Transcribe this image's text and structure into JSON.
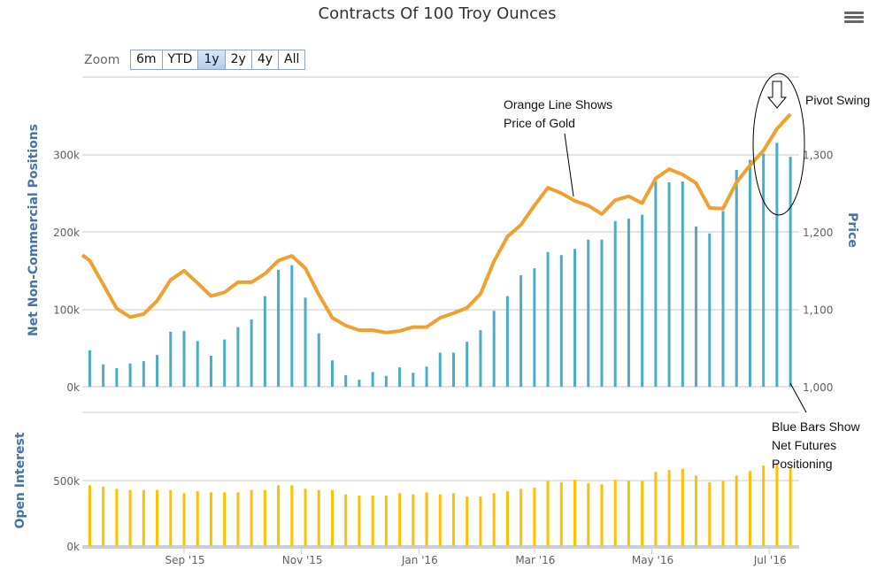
{
  "title": "Contracts Of 100 Troy Ounces",
  "menu_icon": "hamburger-menu-icon",
  "range_selector": {
    "label": "Zoom",
    "buttons": [
      "6m",
      "YTD",
      "1y",
      "2y",
      "4y",
      "All"
    ],
    "selected": "1y"
  },
  "annotations": {
    "orange": [
      "Orange Line Shows",
      "Price of Gold"
    ],
    "pivot": "Pivot Swing",
    "blue": [
      "Blue Bars Show",
      "Net Futures",
      "Positioning"
    ]
  },
  "colors": {
    "net_bars": "#4bacc6",
    "price_line": "#f0a030",
    "open_interest": "#ffc000",
    "grid": "#c8c8c8",
    "axis_title": "#4572a7"
  },
  "chart_data": [
    {
      "type": "bar+line",
      "title": "Contracts Of 100 Troy Ounces",
      "ylabel": "Net Non-Commercial Positions",
      "ylabel_right": "Price",
      "left_ticks": [
        "0k",
        "100k",
        "200k",
        "300k"
      ],
      "right_ticks": [
        "1,000",
        "1,100",
        "1,200",
        "1,300"
      ],
      "ylim": [
        0,
        400000
      ],
      "ylim_right": [
        1000,
        1400
      ],
      "grid": true,
      "x_start": "2015-07-14",
      "x_step_days": 7,
      "net_positions_k": [
        47,
        29,
        24,
        30,
        33,
        41,
        71,
        72,
        59,
        40,
        61,
        77,
        87,
        117,
        151,
        157,
        115,
        69,
        34,
        15,
        9,
        19,
        14,
        25,
        18,
        26,
        44,
        44,
        58,
        73,
        98,
        117,
        144,
        153,
        174,
        170,
        178,
        190,
        190,
        214,
        217,
        222,
        265,
        264,
        265,
        207,
        198,
        227,
        280,
        293,
        301,
        315,
        297
      ],
      "price": [
        1163,
        1132,
        1101,
        1090,
        1094,
        1111,
        1138,
        1150,
        1134,
        1117,
        1122,
        1135,
        1135,
        1146,
        1163,
        1169,
        1153,
        1119,
        1089,
        1079,
        1073,
        1073,
        1070,
        1072,
        1077,
        1077,
        1089,
        1095,
        1102,
        1120,
        1162,
        1194,
        1209,
        1234,
        1257,
        1250,
        1240,
        1234,
        1223,
        1241,
        1246,
        1237,
        1269,
        1281,
        1274,
        1263,
        1231,
        1230,
        1264,
        1286,
        1305,
        1333,
        1352
      ]
    },
    {
      "type": "bar",
      "ylabel": "Open Interest",
      "ticks": [
        "0k",
        "500k"
      ],
      "ylim": [
        0,
        1000000
      ],
      "x_start": "2015-07-14",
      "x_step_days": 7,
      "open_interest_k": [
        464,
        453,
        437,
        428,
        428,
        428,
        428,
        403,
        419,
        410,
        410,
        410,
        428,
        428,
        464,
        464,
        437,
        428,
        428,
        394,
        385,
        385,
        385,
        403,
        394,
        410,
        394,
        403,
        378,
        378,
        403,
        419,
        437,
        446,
        496,
        487,
        505,
        480,
        471,
        505,
        496,
        496,
        566,
        581,
        590,
        538,
        487,
        496,
        538,
        572,
        615,
        635,
        605
      ],
      "x_ticks": [
        "Sep '15",
        "Nov '15",
        "Jan '16",
        "Mar '16",
        "May '16",
        "Jul '16"
      ],
      "x_tick_dates": [
        "2015-09-01",
        "2015-11-01",
        "2016-01-01",
        "2016-03-01",
        "2016-05-01",
        "2016-07-01"
      ]
    }
  ]
}
